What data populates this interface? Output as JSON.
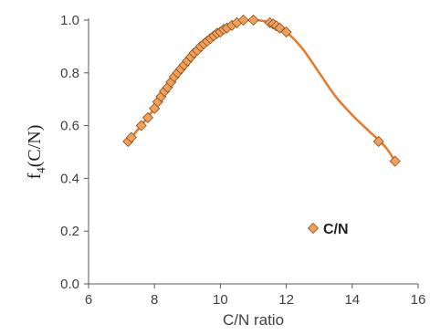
{
  "chart_data": {
    "type": "scatter",
    "xlabel": "C/N ratio",
    "ylabel": {
      "main": "f",
      "sub": "4",
      "rest": "(C/N)"
    },
    "xlim": [
      6,
      16
    ],
    "ylim": [
      0,
      1.0
    ],
    "x_ticks": [
      6,
      8,
      10,
      12,
      14,
      16
    ],
    "y_ticks": [
      "0.0",
      "0.2",
      "0.4",
      "0.6",
      "0.8",
      "1.0"
    ],
    "grid": false,
    "legend": {
      "position": "lower-right",
      "label": "C/N"
    },
    "colors": {
      "marker_fill": "#F0A05A",
      "marker_edge": "#8A4E1A",
      "curve": "#E9782A",
      "axis": "#595959"
    },
    "series": [
      {
        "name": "C/N",
        "marker": "diamond",
        "points": [
          [
            7.2,
            0.54
          ],
          [
            7.3,
            0.555
          ],
          [
            7.6,
            0.6
          ],
          [
            7.8,
            0.63
          ],
          [
            8.0,
            0.665
          ],
          [
            8.1,
            0.69
          ],
          [
            8.2,
            0.71
          ],
          [
            8.3,
            0.73
          ],
          [
            8.4,
            0.745
          ],
          [
            8.5,
            0.765
          ],
          [
            8.6,
            0.785
          ],
          [
            8.7,
            0.8
          ],
          [
            8.8,
            0.815
          ],
          [
            8.9,
            0.83
          ],
          [
            9.0,
            0.845
          ],
          [
            9.1,
            0.86
          ],
          [
            9.2,
            0.875
          ],
          [
            9.3,
            0.885
          ],
          [
            9.4,
            0.9
          ],
          [
            9.5,
            0.91
          ],
          [
            9.6,
            0.92
          ],
          [
            9.7,
            0.93
          ],
          [
            9.8,
            0.94
          ],
          [
            9.9,
            0.95
          ],
          [
            10.0,
            0.955
          ],
          [
            10.1,
            0.965
          ],
          [
            10.2,
            0.97
          ],
          [
            10.35,
            0.98
          ],
          [
            10.5,
            0.99
          ],
          [
            10.7,
            1.0
          ],
          [
            11.0,
            1.0
          ],
          [
            11.5,
            0.99
          ],
          [
            11.6,
            0.985
          ],
          [
            11.7,
            0.978
          ],
          [
            11.8,
            0.97
          ],
          [
            12.0,
            0.955
          ],
          [
            14.8,
            0.54
          ],
          [
            15.3,
            0.465
          ]
        ]
      }
    ],
    "trend_curve": [
      [
        7.2,
        0.54
      ],
      [
        8.0,
        0.665
      ],
      [
        9.0,
        0.845
      ],
      [
        10.0,
        0.955
      ],
      [
        10.5,
        0.99
      ],
      [
        11.0,
        1.0
      ],
      [
        11.5,
        0.99
      ],
      [
        12.0,
        0.955
      ],
      [
        12.5,
        0.89
      ],
      [
        13.0,
        0.8
      ],
      [
        13.5,
        0.71
      ],
      [
        14.0,
        0.64
      ],
      [
        14.5,
        0.58
      ],
      [
        15.0,
        0.52
      ],
      [
        15.3,
        0.465
      ]
    ]
  }
}
